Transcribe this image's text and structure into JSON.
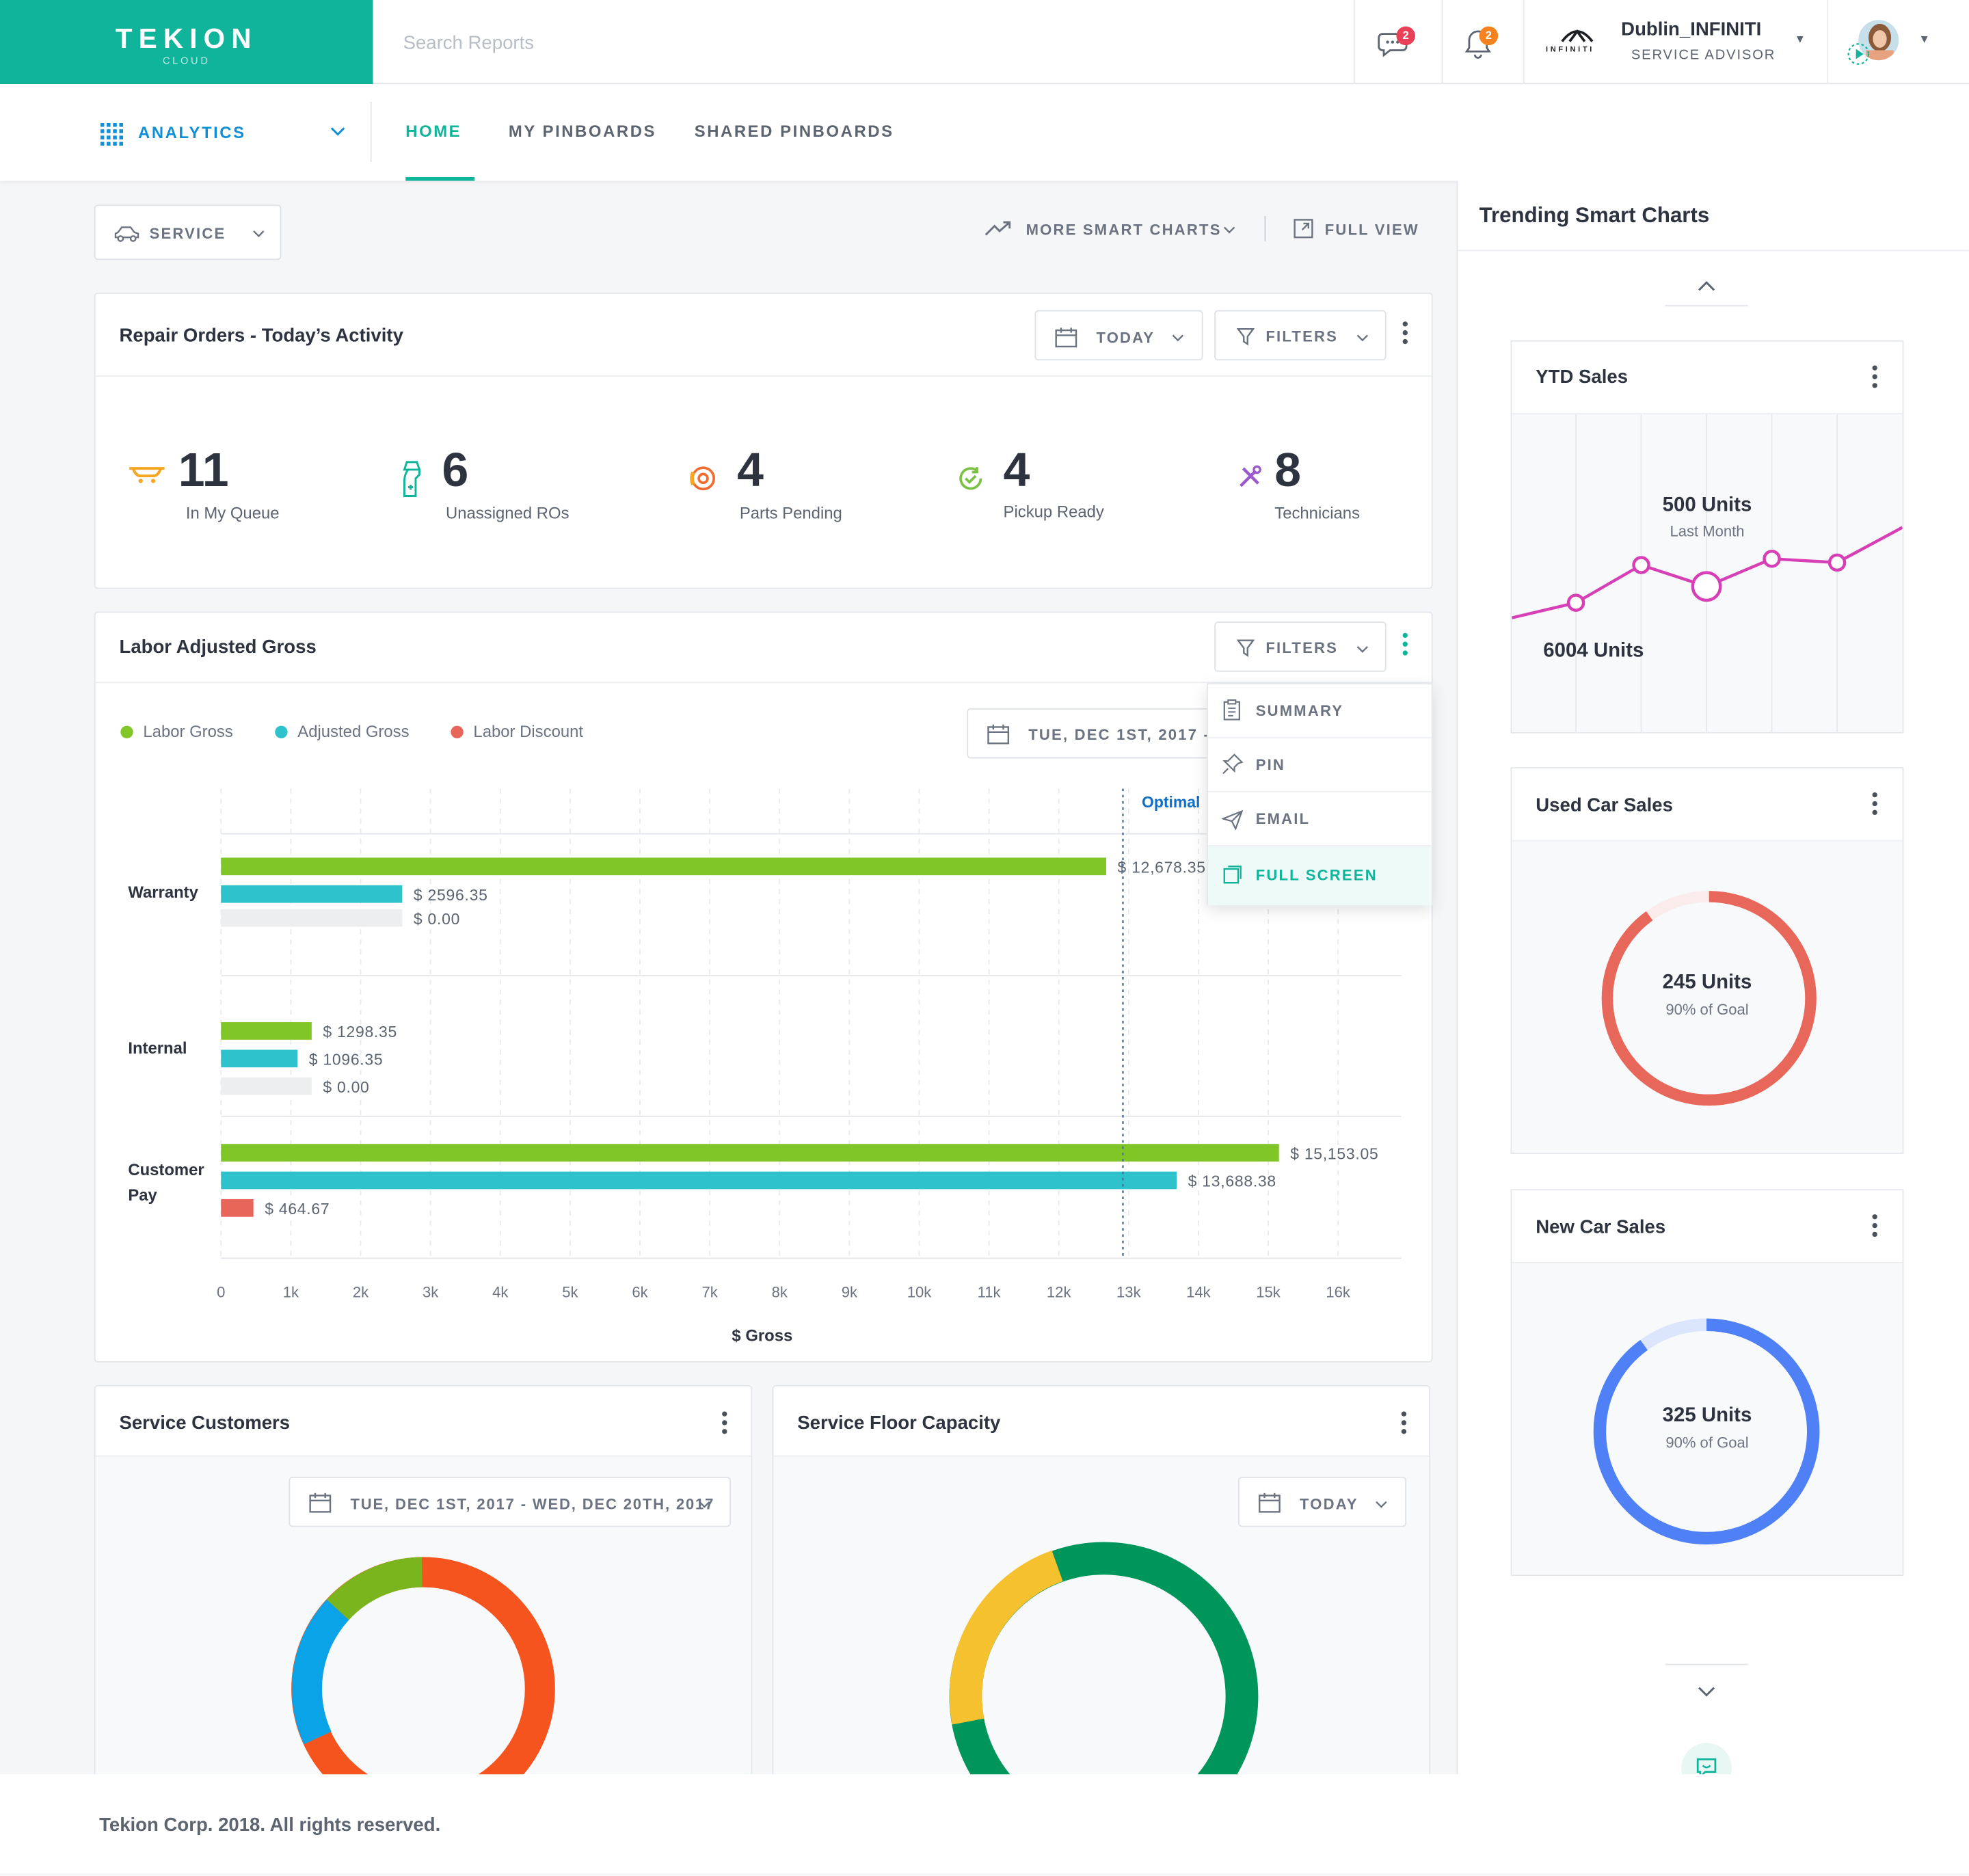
{
  "brand": {
    "name": "TEKION",
    "sub": "CLOUD",
    "color": "#10b49a"
  },
  "search": {
    "placeholder": "Search Reports"
  },
  "header": {
    "messages_count": "2",
    "notifications_count": "2",
    "dealer_name": "Dublin_INFINITI",
    "dealer_logo_text": "INFINITI",
    "role": "SERVICE ADVISOR"
  },
  "subnav": {
    "module": "ANALYTICS",
    "tabs": [
      {
        "label": "HOME",
        "active": true
      },
      {
        "label": "MY PINBOARDS",
        "active": false
      },
      {
        "label": "SHARED PINBOARDS",
        "active": false
      }
    ]
  },
  "toolbar": {
    "department": "SERVICE",
    "more_charts": "MORE SMART CHARTS",
    "full_view": "FULL VIEW"
  },
  "repair_orders": {
    "title": "Repair Orders - Today’s Activity",
    "date_filter": "TODAY",
    "filters_label": "FILTERS",
    "stats": [
      {
        "value": "11",
        "label": "In My Queue",
        "icon": "queue-icon",
        "color": "#f5a623"
      },
      {
        "value": "6",
        "label": "Unassigned ROs",
        "icon": "spray-bottle-icon",
        "color": "#10b49a"
      },
      {
        "value": "4",
        "label": "Parts Pending",
        "icon": "brake-disc-icon",
        "color": "#f26a2e"
      },
      {
        "value": "4",
        "label": "Pickup Ready",
        "icon": "check-cycle-icon",
        "color": "#7ac143"
      },
      {
        "value": "8",
        "label": "Technicians",
        "icon": "tools-icon",
        "color": "#9b59d0"
      }
    ]
  },
  "labor_gross": {
    "title": "Labor Adjusted Gross",
    "filters_label": "FILTERS",
    "date_range": "TUE, DEC 1ST, 2017 - WI",
    "optimal_label": "Optimal",
    "menu": [
      {
        "label": "SUMMARY",
        "icon": "clipboard-icon",
        "active": false
      },
      {
        "label": "PIN",
        "icon": "pin-icon",
        "active": false
      },
      {
        "label": "EMAIL",
        "icon": "send-icon",
        "active": false
      },
      {
        "label": "FULL SCREEN",
        "icon": "fullscreen-icon",
        "active": true
      }
    ]
  },
  "chart_data": {
    "type": "bar",
    "orientation": "horizontal",
    "categories": [
      "Warranty",
      "Internal",
      "Customer Pay"
    ],
    "series": [
      {
        "name": "Labor Gross",
        "color": "#80c627",
        "values": [
          12678.35,
          1298.35,
          15153.05
        ],
        "labels": [
          "$ 12,678.35",
          "$ 1298.35",
          "$ 15,153.05"
        ]
      },
      {
        "name": "Adjusted Gross",
        "color": "#2ec2cc",
        "values": [
          2596.35,
          1096.35,
          13688.38
        ],
        "labels": [
          "$ 2596.35",
          "$ 1096.35",
          "$ 13,688.38"
        ]
      },
      {
        "name": "Labor Discount",
        "color": "#e8655a",
        "values": [
          0.0,
          0.0,
          464.67
        ],
        "labels": [
          "$ 0.00",
          "$ 0.00",
          "$ 464.67"
        ]
      }
    ],
    "xlabel": "$ Gross",
    "xlim": [
      0,
      16000
    ],
    "xticks": [
      "0",
      "1k",
      "2k",
      "3k",
      "4k",
      "5k",
      "6k",
      "7k",
      "8k",
      "9k",
      "10k",
      "11k",
      "12k",
      "13k",
      "14k",
      "15k",
      "16k"
    ],
    "optimal_value": 12900,
    "grid": true,
    "legend_position": "top-left"
  },
  "service_customers": {
    "title": "Service Customers",
    "date_range": "TUE, DEC 1ST, 2017 - WED, DEC 20TH, 2017",
    "donut_colors": [
      "#f5541f",
      "#0ba3e8",
      "#7ab51d"
    ]
  },
  "service_floor": {
    "title": "Service Floor Capacity",
    "date_filter": "TODAY",
    "donut_colors": [
      "#00955a",
      "#f5c12e"
    ]
  },
  "trending": {
    "title": "Trending Smart Charts",
    "ytd": {
      "title": "YTD Sales",
      "top_value": "500 Units",
      "top_sub": "Last Month",
      "bottom_value": "6004 Units",
      "color": "#d63fb5"
    },
    "used": {
      "title": "Used Car Sales",
      "value": "245 Units",
      "sub": "90% of Goal",
      "percent": 0.9,
      "color": "#e8675b",
      "track": "#fbecec"
    },
    "new": {
      "title": "New Car Sales",
      "value": "325 Units",
      "sub": "90% of Goal",
      "percent": 0.9,
      "color": "#4f80f5",
      "track": "#dbe5fb"
    }
  },
  "footer": {
    "text": "Tekion Corp. 2018. All rights reserved."
  }
}
